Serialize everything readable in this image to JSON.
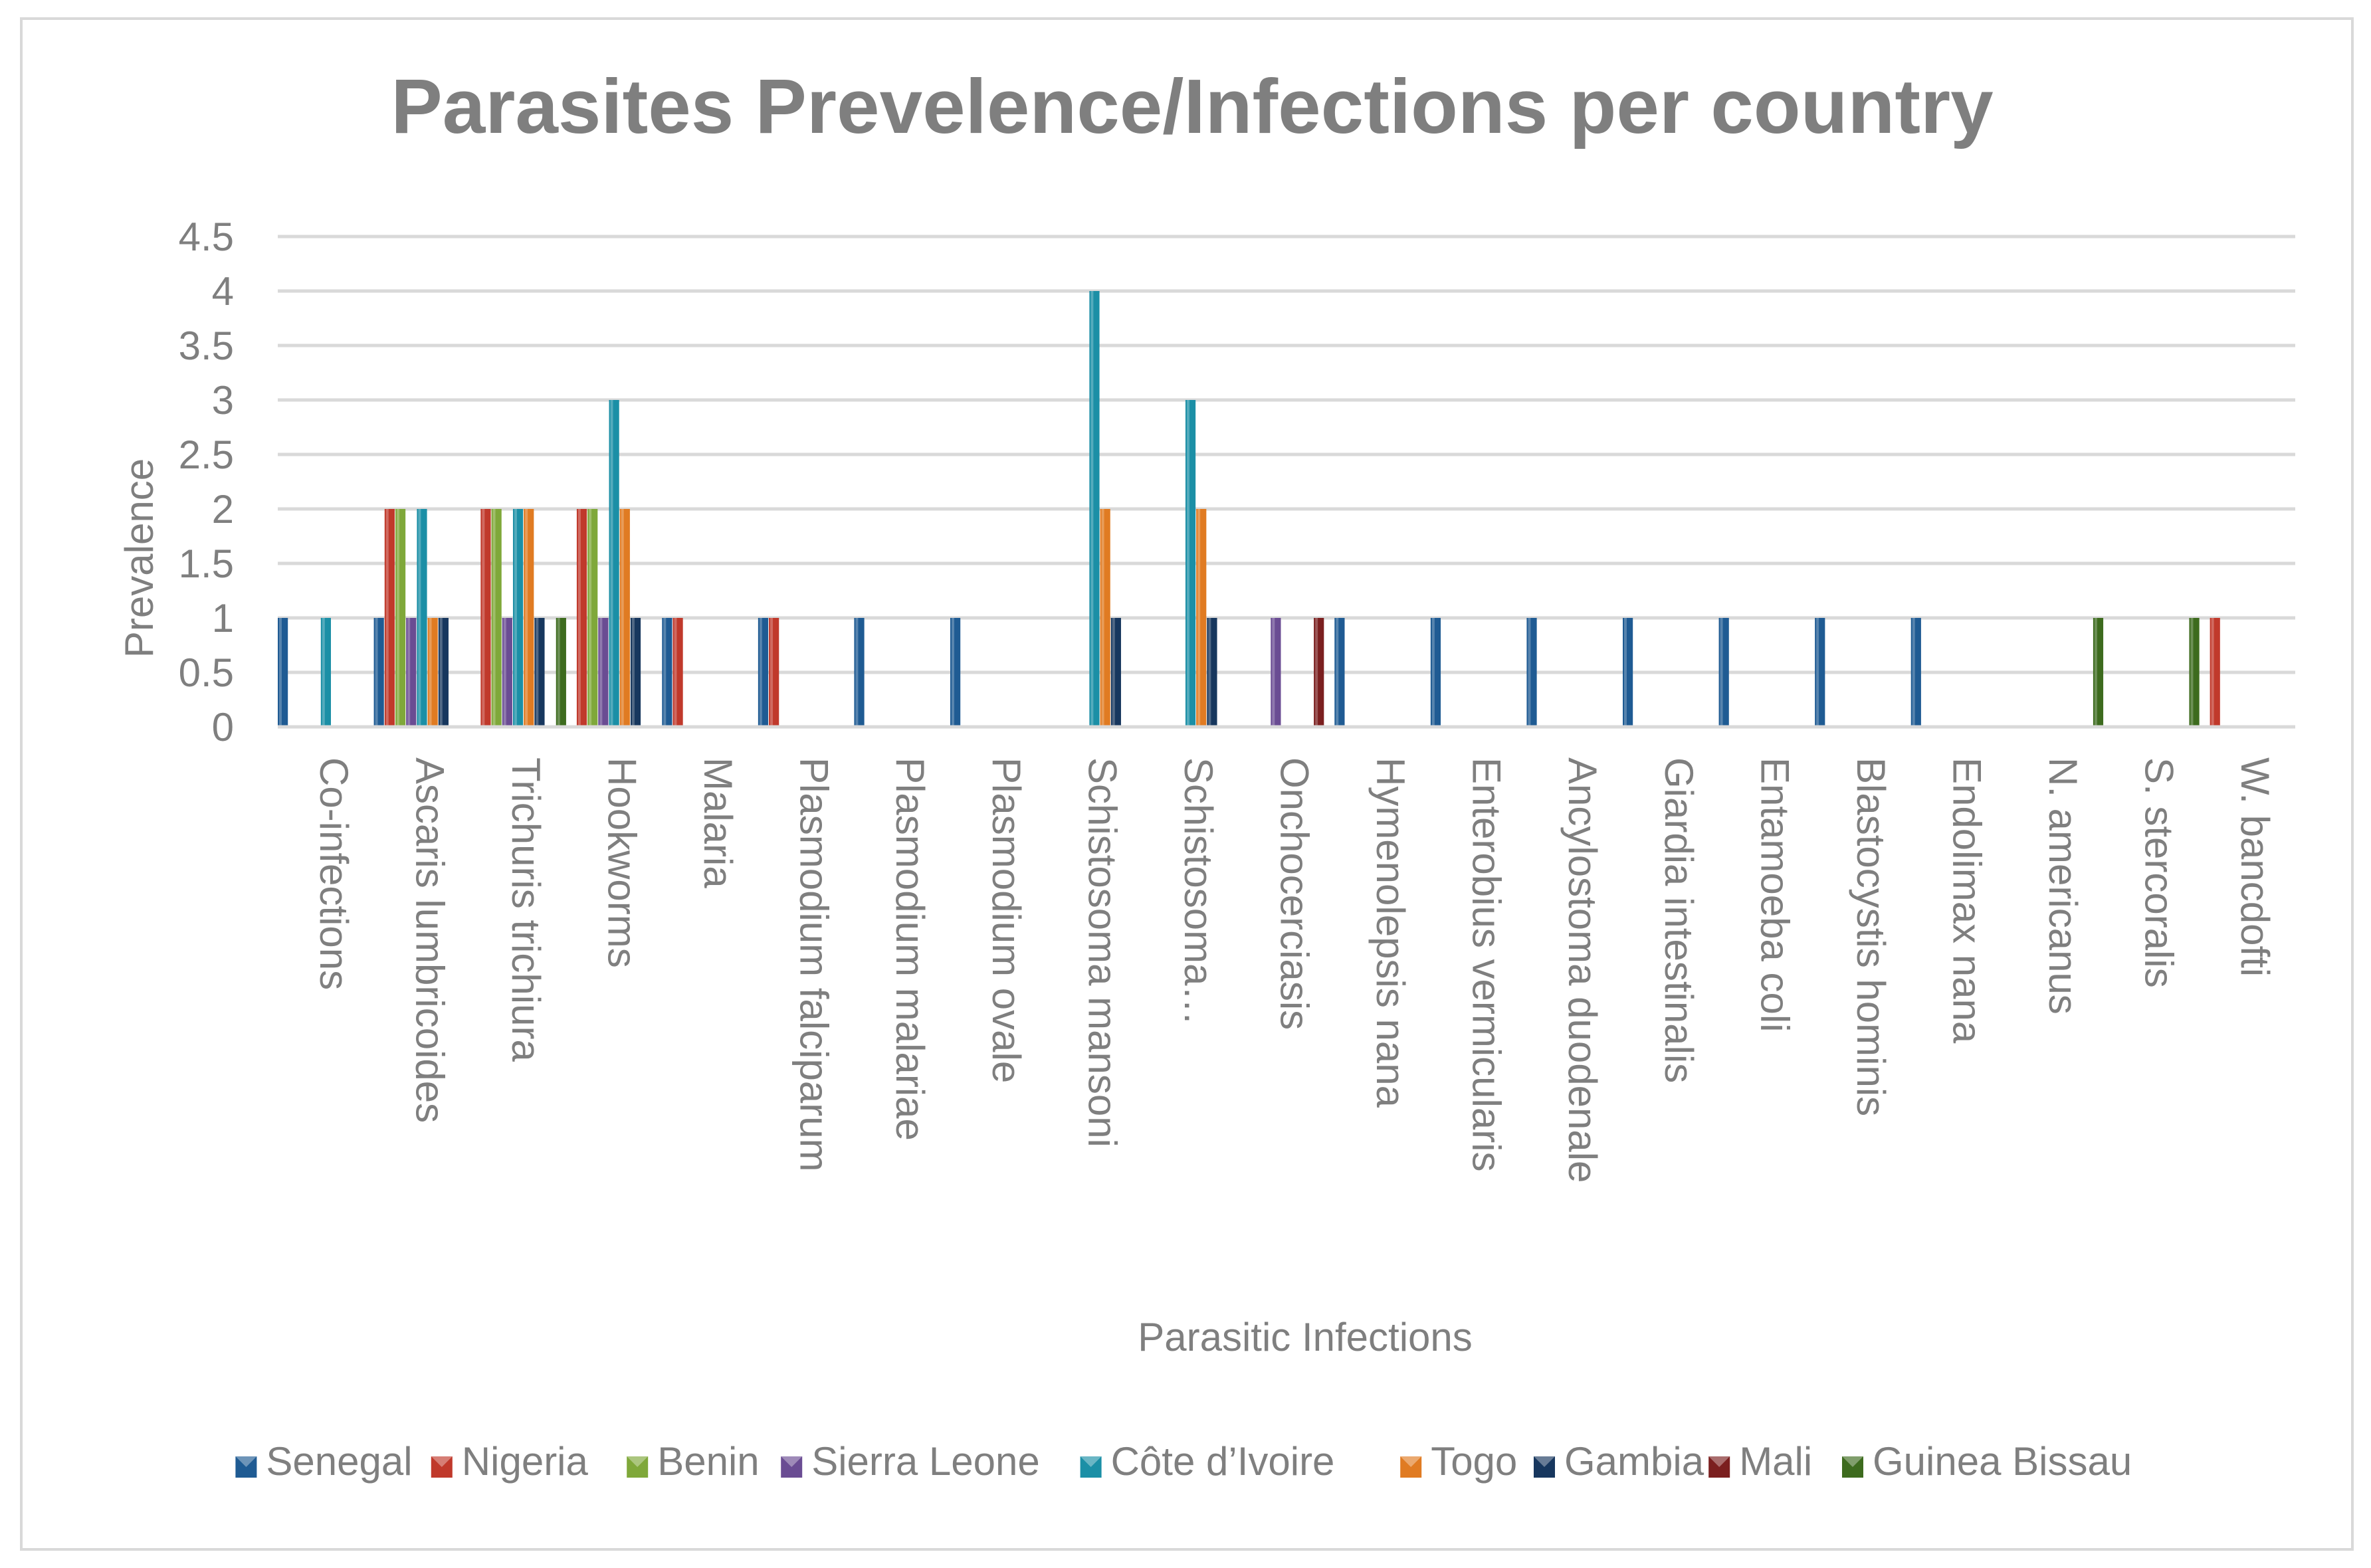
{
  "chart_data": {
    "type": "bar",
    "title": "Parasites Prevelence/Infections per country",
    "xlabel": "Parasitic Infections",
    "ylabel": "Prevalence",
    "ylim": [
      0,
      4.5
    ],
    "yticks": [
      "0",
      "0.5",
      "1",
      "1.5",
      "2",
      "2.5",
      "3",
      "3.5",
      "4",
      "4.5"
    ],
    "grid": true,
    "legend_position": "bottom",
    "categories": [
      "Co-infections",
      "Ascaris lumbricoides",
      "Trichuris trichiura",
      "Hookworms",
      "Malaria",
      "Plasmodium falciparum",
      "Plasmodium malariae",
      "Plasmodium ovale",
      "Schistosoma mansoni",
      "Schistosoma…",
      "Onchocerciasis",
      "Hymenolepsis nana",
      "Enterobius vermicularis",
      "Ancylostoma duodenale",
      "Giardia intestinalis",
      "Entamoeba coli",
      "Blastocystis hominis",
      "Endolimax nana",
      "N. americanus",
      "S. stercoralis",
      "W. bancdofti"
    ],
    "series": [
      {
        "name": "Senegal",
        "color": "#1f5b93",
        "values": [
          1,
          1,
          0,
          0,
          1,
          1,
          1,
          1,
          0,
          0,
          0,
          1,
          1,
          1,
          1,
          1,
          1,
          1,
          0,
          0,
          0
        ]
      },
      {
        "name": "Nigeria",
        "color": "#c0392b",
        "values": [
          0,
          2,
          2,
          2,
          1,
          1,
          0,
          0,
          0,
          0,
          0,
          0,
          0,
          0,
          0,
          0,
          0,
          0,
          0,
          0,
          1
        ]
      },
      {
        "name": "Benin",
        "color": "#7fa83a",
        "values": [
          0,
          2,
          2,
          2,
          0,
          0,
          0,
          0,
          0,
          0,
          0,
          0,
          0,
          0,
          0,
          0,
          0,
          0,
          0,
          0,
          0
        ]
      },
      {
        "name": "Sierra Leone",
        "color": "#6a4c93",
        "values": [
          0,
          1,
          1,
          1,
          0,
          0,
          0,
          0,
          0,
          0,
          1,
          0,
          0,
          0,
          0,
          0,
          0,
          0,
          0,
          0,
          0
        ]
      },
      {
        "name": "Côte d’Ivoire",
        "color": "#1b8fa6",
        "values": [
          1,
          2,
          2,
          3,
          0,
          0,
          0,
          0,
          4,
          3,
          0,
          0,
          0,
          0,
          0,
          0,
          0,
          0,
          0,
          0,
          0
        ]
      },
      {
        "name": "Togo",
        "color": "#e07b22",
        "values": [
          0,
          1,
          2,
          2,
          0,
          0,
          0,
          0,
          2,
          2,
          0,
          0,
          0,
          0,
          0,
          0,
          0,
          0,
          0,
          0,
          0
        ]
      },
      {
        "name": "Gambia",
        "color": "#17375e",
        "values": [
          0,
          1,
          1,
          1,
          0,
          0,
          0,
          0,
          1,
          1,
          0,
          0,
          0,
          0,
          0,
          0,
          0,
          0,
          0,
          0,
          0
        ]
      },
      {
        "name": "Mali",
        "color": "#7b1f1f",
        "values": [
          0,
          0,
          0,
          0,
          0,
          0,
          0,
          0,
          0,
          0,
          1,
          0,
          0,
          0,
          0,
          0,
          0,
          0,
          0,
          0,
          0
        ]
      },
      {
        "name": "Guinea Bissau",
        "color": "#3d6b1e",
        "values": [
          0,
          0,
          1,
          0,
          0,
          0,
          0,
          0,
          0,
          0,
          0,
          0,
          0,
          0,
          0,
          0,
          0,
          0,
          1,
          1,
          0
        ]
      }
    ]
  }
}
